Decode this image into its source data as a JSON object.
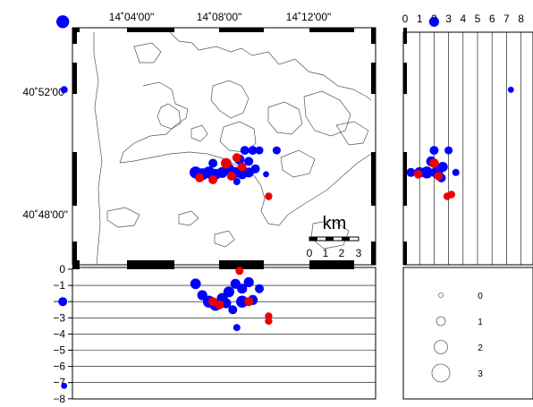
{
  "colors": {
    "blue": "#0000ff",
    "red": "#ee0000",
    "frame": "#000000",
    "coast": "#555555"
  },
  "map": {
    "lon_labels": [
      "14˚04'00\"",
      "14˚08'00\"",
      "14˚12'00\""
    ],
    "lat_labels": [
      "40˚52'00\"",
      "40˚48'00\""
    ],
    "scale_bar": {
      "unit": "km",
      "ticks": [
        "0",
        "1",
        "2",
        "3"
      ]
    }
  },
  "depth_section": {
    "y_ticks": [
      "0",
      "−1",
      "−2",
      "−3",
      "−4",
      "−5",
      "−6",
      "−7",
      "−8"
    ],
    "unit": "km"
  },
  "side_section": {
    "x_ticks": [
      "0",
      "1",
      "2",
      "3",
      "4",
      "5",
      "6",
      "7",
      "8"
    ]
  },
  "magnitude_legend": {
    "items": [
      {
        "label": "0",
        "magnitude": 0
      },
      {
        "label": "1",
        "magnitude": 1
      },
      {
        "label": "2",
        "magnitude": 2
      },
      {
        "label": "3",
        "magnitude": 3
      }
    ]
  },
  "events": {
    "map_blue": [
      {
        "x": 14.015,
        "y": 40.905,
        "m": 2.0
      },
      {
        "x": 14.016,
        "y": 40.868,
        "m": 0.8
      },
      {
        "x": 14.176,
        "y": 40.835,
        "m": 1.0
      },
      {
        "x": 14.115,
        "y": 40.823,
        "m": 1.8
      },
      {
        "x": 14.12,
        "y": 40.822,
        "m": 1.8
      },
      {
        "x": 14.125,
        "y": 40.823,
        "m": 1.8
      },
      {
        "x": 14.13,
        "y": 40.822,
        "m": 1.6
      },
      {
        "x": 14.135,
        "y": 40.823,
        "m": 1.6
      },
      {
        "x": 14.14,
        "y": 40.825,
        "m": 1.6
      },
      {
        "x": 14.145,
        "y": 40.823,
        "m": 1.6
      },
      {
        "x": 14.15,
        "y": 40.822,
        "m": 1.4
      },
      {
        "x": 14.155,
        "y": 40.823,
        "m": 1.4
      },
      {
        "x": 14.16,
        "y": 40.825,
        "m": 1.2
      },
      {
        "x": 14.128,
        "y": 40.828,
        "m": 1.2
      },
      {
        "x": 14.148,
        "y": 40.83,
        "m": 1.4
      },
      {
        "x": 14.152,
        "y": 40.835,
        "m": 1.2
      },
      {
        "x": 14.158,
        "y": 40.835,
        "m": 1.2
      },
      {
        "x": 14.163,
        "y": 40.835,
        "m": 1.0
      },
      {
        "x": 14.155,
        "y": 40.829,
        "m": 1.2
      },
      {
        "x": 14.168,
        "y": 40.822,
        "m": 0.6
      },
      {
        "x": 14.146,
        "y": 40.818,
        "m": 0.8
      }
    ],
    "map_red": [
      {
        "x": 14.118,
        "y": 40.82,
        "m": 1.2
      },
      {
        "x": 14.128,
        "y": 40.819,
        "m": 1.2
      },
      {
        "x": 14.138,
        "y": 40.828,
        "m": 1.5
      },
      {
        "x": 14.142,
        "y": 40.821,
        "m": 1.2
      },
      {
        "x": 14.146,
        "y": 40.831,
        "m": 1.2
      },
      {
        "x": 14.15,
        "y": 40.826,
        "m": 1.2
      },
      {
        "x": 14.17,
        "y": 40.81,
        "m": 0.9
      }
    ],
    "depth_blue": [
      {
        "x": 14.015,
        "d": -2.0,
        "m": 1.2
      },
      {
        "x": 14.016,
        "d": -7.2,
        "m": 0.6
      },
      {
        "x": 14.115,
        "d": -0.9,
        "m": 1.5
      },
      {
        "x": 14.12,
        "d": -1.6,
        "m": 1.4
      },
      {
        "x": 14.125,
        "d": -2.0,
        "m": 1.8
      },
      {
        "x": 14.13,
        "d": -2.2,
        "m": 1.8
      },
      {
        "x": 14.135,
        "d": -1.8,
        "m": 1.6
      },
      {
        "x": 14.14,
        "d": -1.4,
        "m": 1.6
      },
      {
        "x": 14.145,
        "d": -0.9,
        "m": 1.4
      },
      {
        "x": 14.15,
        "d": -1.2,
        "m": 1.4
      },
      {
        "x": 14.155,
        "d": -0.8,
        "m": 1.4
      },
      {
        "x": 14.158,
        "d": -1.9,
        "m": 1.4
      },
      {
        "x": 14.163,
        "d": -1.2,
        "m": 1.2
      },
      {
        "x": 14.143,
        "d": -2.5,
        "m": 1.2
      },
      {
        "x": 14.146,
        "d": -3.6,
        "m": 0.8
      },
      {
        "x": 14.15,
        "d": -2.0,
        "m": 1.8
      },
      {
        "x": 14.138,
        "d": -2.1,
        "m": 1.4
      }
    ],
    "depth_red": [
      {
        "x": 14.128,
        "d": -2.0,
        "m": 1.2
      },
      {
        "x": 14.133,
        "d": -2.2,
        "m": 1.2
      },
      {
        "x": 14.148,
        "d": -0.1,
        "m": 1.0
      },
      {
        "x": 14.155,
        "d": -2.0,
        "m": 1.2
      },
      {
        "x": 14.17,
        "d": -2.9,
        "m": 0.9
      },
      {
        "x": 14.17,
        "d": -3.2,
        "m": 0.9
      }
    ],
    "side_blue": [
      {
        "d": 2.0,
        "y": 40.905,
        "m": 1.4
      },
      {
        "d": 7.3,
        "y": 40.868,
        "m": 0.6
      },
      {
        "d": 2.0,
        "y": 40.835,
        "m": 1.2
      },
      {
        "d": 3.0,
        "y": 40.835,
        "m": 1.0
      },
      {
        "d": 1.5,
        "y": 40.823,
        "m": 1.8
      },
      {
        "d": 2.2,
        "y": 40.823,
        "m": 1.8
      },
      {
        "d": 1.0,
        "y": 40.823,
        "m": 1.5
      },
      {
        "d": 0.4,
        "y": 40.823,
        "m": 1.2
      },
      {
        "d": 2.6,
        "y": 40.826,
        "m": 1.4
      },
      {
        "d": 3.5,
        "y": 40.823,
        "m": 0.8
      },
      {
        "d": 1.8,
        "y": 40.829,
        "m": 1.4
      },
      {
        "d": 2.5,
        "y": 40.82,
        "m": 1.2
      }
    ],
    "side_red": [
      {
        "d": 2.0,
        "y": 40.828,
        "m": 1.3
      },
      {
        "d": 0.9,
        "y": 40.822,
        "m": 1.1
      },
      {
        "d": 2.3,
        "y": 40.821,
        "m": 1.1
      },
      {
        "d": 2.9,
        "y": 40.81,
        "m": 0.9
      },
      {
        "d": 3.2,
        "y": 40.811,
        "m": 0.9
      }
    ]
  }
}
